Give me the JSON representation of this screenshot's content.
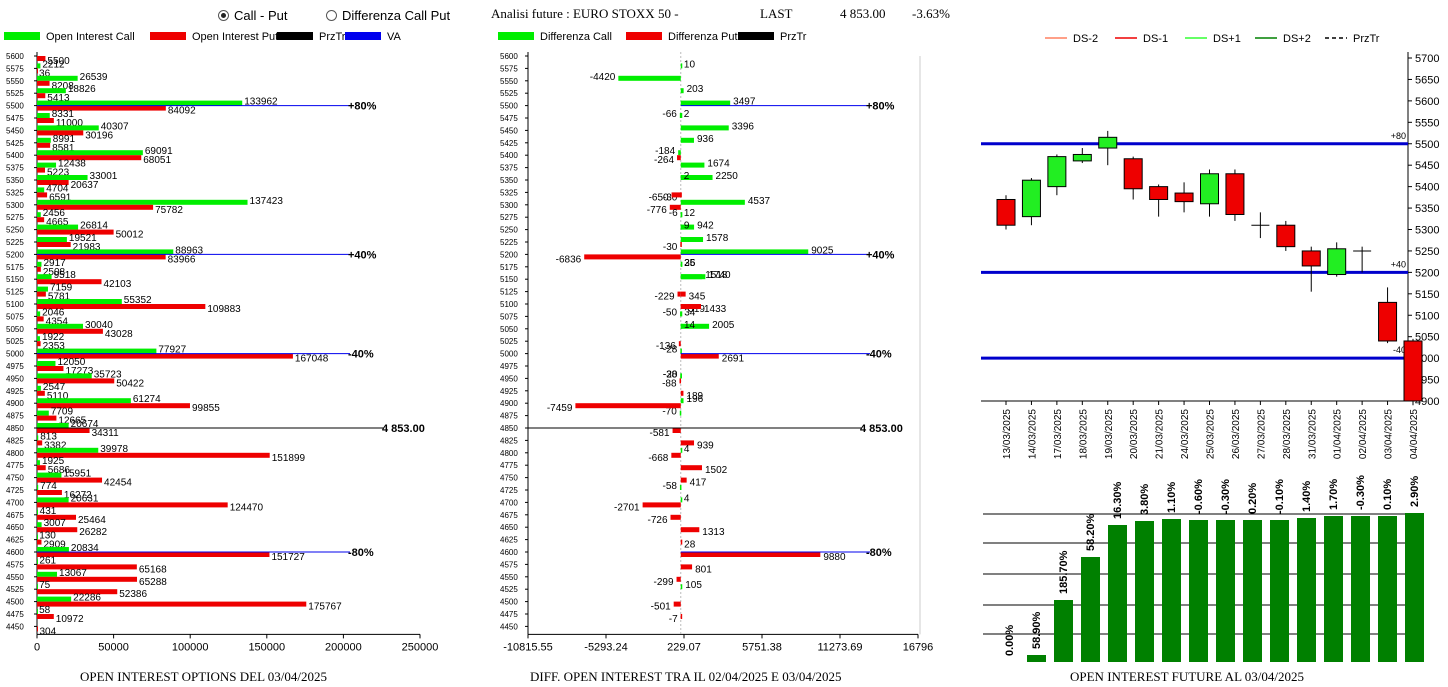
{
  "header": {
    "radio1": "Call - Put",
    "radio2": "Differenza Call Put",
    "radio1_selected": true,
    "analysis": "Analisi future : EURO STOXX 50 -",
    "last_label": "LAST",
    "last_value": "4 853.00",
    "change": "-3.63%"
  },
  "captions": {
    "left": "OPEN INTEREST OPTIONS DEL 03/04/2025",
    "mid": "DIFF. OPEN INTEREST TRA IL 02/04/2025 E 03/04/2025",
    "right": "OPEN INTEREST FUTURE AL 03/04/2025"
  },
  "colors": {
    "call": "#00ee00",
    "put": "#ee0000",
    "va": "#0000ee",
    "dark_green": "#008000"
  },
  "chart_data": [
    {
      "type": "bar",
      "orientation": "horizontal",
      "legend": [
        "Open Interest Call",
        "Open Interest Put",
        "PrzTr",
        "VA"
      ],
      "strikes": [
        5600,
        5575,
        5550,
        5525,
        5500,
        5475,
        5450,
        5425,
        5400,
        5375,
        5350,
        5325,
        5300,
        5275,
        5250,
        5225,
        5200,
        5175,
        5150,
        5125,
        5100,
        5075,
        5050,
        5025,
        5000,
        4975,
        4950,
        4925,
        4900,
        4875,
        4850,
        4825,
        4800,
        4775,
        4750,
        4725,
        4700,
        4675,
        4650,
        4625,
        4600,
        4575,
        4550,
        4525,
        4500,
        4475,
        4450
      ],
      "call": [
        null,
        2212,
        26539,
        18826,
        133962,
        8331,
        40307,
        8991,
        69091,
        12438,
        33001,
        4704,
        137423,
        2456,
        26814,
        19521,
        88963,
        2917,
        9518,
        7159,
        55352,
        2046,
        30040,
        1922,
        77927,
        12050,
        35723,
        2547,
        61274,
        7709,
        20674,
        813,
        39978,
        1925,
        15951,
        774,
        20631,
        431,
        3007,
        130,
        20834,
        261,
        13067,
        75,
        22286,
        58,
        null
      ],
      "put": [
        5500,
        36,
        8208,
        5413,
        84092,
        11000,
        30196,
        8581,
        68051,
        5223,
        20637,
        6591,
        75782,
        4665,
        50012,
        21983,
        83966,
        2508,
        42103,
        5781,
        109883,
        4354,
        43028,
        2353,
        167048,
        17273,
        50422,
        5110,
        99855,
        12665,
        34311,
        3382,
        151899,
        5686,
        42454,
        16272,
        124470,
        25464,
        26282,
        2909,
        151727,
        65168,
        65288,
        52386,
        175767,
        10972,
        304
      ],
      "markers": [
        {
          "label": "+80%",
          "strike": 5500
        },
        {
          "label": "+40%",
          "strike": 5200
        },
        {
          "label": "-40%",
          "strike": 5000
        },
        {
          "label": "-80%",
          "strike": 4600
        }
      ],
      "last_label": "4 853.00",
      "xticks": [
        "0",
        "50000",
        "100000",
        "150000",
        "200000",
        "250000"
      ],
      "xlim": [
        0,
        250000
      ]
    },
    {
      "type": "bar",
      "orientation": "horizontal",
      "legend": [
        "Differenza Call",
        "Differenza Put",
        "PrzTr"
      ],
      "strikes": [
        5600,
        5575,
        5550,
        5525,
        5500,
        5475,
        5450,
        5425,
        5400,
        5375,
        5350,
        5325,
        5300,
        5275,
        5250,
        5225,
        5200,
        5175,
        5150,
        5125,
        5100,
        5075,
        5050,
        5025,
        5000,
        4975,
        4950,
        4925,
        4900,
        4875,
        4850,
        4825,
        4800,
        4775,
        4750,
        4725,
        4700,
        4675,
        4650,
        4625,
        4600,
        4575,
        4550,
        4525,
        4500,
        4475,
        4450
      ],
      "rows": [
        {
          "v": 10,
          "t": "c"
        },
        {
          "v": -4420,
          "t": "c"
        },
        {
          "v": 203,
          "t": "c"
        },
        {
          "v": 3497,
          "t": "c"
        },
        {
          "v": -66,
          "t": "c"
        },
        {
          "v": 3396,
          "t": "c"
        },
        {
          "v": 936,
          "t": "c"
        },
        {
          "v": -184,
          "t": "c"
        },
        {
          "v": 1674,
          "t": "c"
        },
        {
          "v": 2250,
          "t": "c"
        },
        {
          "v": -30,
          "t": "p"
        },
        {
          "v": -776,
          "t": "p"
        },
        {
          "v": 942,
          "t": "c"
        },
        {
          "v": -30,
          "t": "p"
        },
        {
          "v": 25,
          "t": "c"
        },
        {
          "v": 1740,
          "t": "c"
        },
        {
          "v": 345,
          "t": "p"
        },
        {
          "v": -229,
          "t": "p"
        },
        {
          "v": 34,
          "t": "c"
        },
        {
          "v": 2005,
          "t": "c"
        },
        {
          "v": -136,
          "t": "p"
        },
        {
          "v": -28,
          "t": "c"
        },
        {
          "v": -38,
          "t": "c"
        },
        {
          "v": -88,
          "t": "p"
        },
        {
          "v": -70,
          "t": "c"
        },
        {
          "v": -581,
          "t": "p"
        },
        {
          "v": -668,
          "t": "p"
        },
        {
          "v": 1502,
          "t": "p"
        },
        {
          "v": -58,
          "t": "c"
        },
        {
          "v": -2701,
          "t": "p"
        },
        {
          "v": -726,
          "t": "p"
        },
        {
          "v": 28,
          "t": "p"
        },
        {
          "v": 801,
          "t": "p"
        },
        {
          "v": -299,
          "t": "p"
        },
        {
          "v": -501,
          "t": "p"
        },
        {
          "v": -7,
          "t": "p"
        }
      ],
      "row_strikes": [
        5575,
        5550,
        5525,
        5500,
        5475,
        5450,
        5425,
        5400,
        5375,
        5350,
        5325,
        5300,
        5250,
        5225,
        5175,
        5150,
        5125,
        5125,
        5075,
        5050,
        5025,
        5000,
        4950,
        4950,
        4875,
        4850,
        4800,
        4775,
        4725,
        4700,
        4675,
        4625,
        4575,
        4550,
        4500,
        4475
      ],
      "extra": [
        {
          "v": -264,
          "t": "p",
          "s": 5400
        },
        {
          "v": 2,
          "t": "c",
          "s": 5475
        },
        {
          "v": 2,
          "t": "c",
          "s": 5350
        },
        {
          "v": -650,
          "t": "p",
          "s": 5325
        },
        {
          "v": 4537,
          "t": "c",
          "s": 5300
        },
        {
          "v": -6,
          "t": "c",
          "s": 5275
        },
        {
          "v": 12,
          "t": "c",
          "s": 5275
        },
        {
          "v": 9,
          "t": "c",
          "s": 5250
        },
        {
          "v": 1578,
          "t": "c",
          "s": 5225
        },
        {
          "v": 9025,
          "t": "c",
          "s": 5200
        },
        {
          "v": -6836,
          "t": "p",
          "s": 5200
        },
        {
          "v": 36,
          "t": "c",
          "s": 5175
        },
        {
          "v": 1518,
          "t": "c",
          "s": 5150
        },
        {
          "v": 319,
          "t": "p",
          "s": 5100
        },
        {
          "v": 1433,
          "t": "p",
          "s": 5100
        },
        {
          "v": -50,
          "t": "c",
          "s": 5075
        },
        {
          "v": 14,
          "t": "c",
          "s": 5050
        },
        {
          "v": 2691,
          "t": "p",
          "s": 5000
        },
        {
          "v": 189,
          "t": "p",
          "s": 4925
        },
        {
          "v": 196,
          "t": "c",
          "s": 4900
        },
        {
          "v": -7459,
          "t": "p",
          "s": 4900
        },
        {
          "v": 939,
          "t": "p",
          "s": 4825
        },
        {
          "v": 4,
          "t": "c",
          "s": 4800
        },
        {
          "v": 417,
          "t": "p",
          "s": 4750
        },
        {
          "v": 4,
          "t": "c",
          "s": 4700
        },
        {
          "v": 1313,
          "t": "p",
          "s": 4650
        },
        {
          "v": 9880,
          "t": "p",
          "s": 4600
        },
        {
          "v": 105,
          "t": "c",
          "s": 4525
        },
        {
          "v": -20,
          "t": "c",
          "s": 4950
        }
      ],
      "markers": [
        {
          "label": "+80%",
          "strike": 5500
        },
        {
          "label": "+40%",
          "strike": 5200
        },
        {
          "label": "-40%",
          "strike": 5000
        },
        {
          "label": "-80%",
          "strike": 4600
        }
      ],
      "last_label": "4 853.00",
      "xticks": [
        "-10815.55",
        "-5293.24",
        "229.07",
        "5751.38",
        "11273.69",
        "16796"
      ],
      "xlim": [
        -10815.55,
        16796
      ]
    },
    {
      "type": "candlestick",
      "legend": [
        "DS-2",
        "DS-1",
        "DS+1",
        "DS+2",
        "PrzTr"
      ],
      "dates": [
        "13/03/2025",
        "14/03/2025",
        "17/03/2025",
        "18/03/2025",
        "19/03/2025",
        "20/03/2025",
        "21/03/2025",
        "24/03/2025",
        "25/03/2025",
        "26/03/2025",
        "27/03/2025",
        "28/03/2025",
        "31/03/2025",
        "01/04/2025",
        "02/04/2025",
        "03/04/2025",
        "04/04/2025"
      ],
      "candles": [
        {
          "o": 5370,
          "c": 5310,
          "h": 5380,
          "l": 5300
        },
        {
          "o": 5330,
          "c": 5415,
          "h": 5420,
          "l": 5310
        },
        {
          "o": 5400,
          "c": 5470,
          "h": 5475,
          "l": 5380
        },
        {
          "o": 5460,
          "c": 5475,
          "h": 5490,
          "l": 5455
        },
        {
          "o": 5490,
          "c": 5515,
          "h": 5530,
          "l": 5450
        },
        {
          "o": 5465,
          "c": 5395,
          "h": 5470,
          "l": 5370
        },
        {
          "o": 5400,
          "c": 5370,
          "h": 5405,
          "l": 5330
        },
        {
          "o": 5385,
          "c": 5365,
          "h": 5410,
          "l": 5340
        },
        {
          "o": 5360,
          "c": 5430,
          "h": 5440,
          "l": 5330
        },
        {
          "o": 5430,
          "c": 5335,
          "h": 5440,
          "l": 5320
        },
        {
          "o": 5310,
          "c": 5310,
          "h": 5340,
          "l": 5280
        },
        {
          "o": 5310,
          "c": 5260,
          "h": 5320,
          "l": 5250
        },
        {
          "o": 5250,
          "c": 5215,
          "h": 5260,
          "l": 5155
        },
        {
          "o": 5195,
          "c": 5255,
          "h": 5270,
          "l": 5190
        },
        {
          "o": 5250,
          "c": 5250,
          "h": 5260,
          "l": 5200
        },
        {
          "o": 5130,
          "c": 5040,
          "h": 5165,
          "l": 5035
        },
        {
          "o": 5040,
          "c": 4900,
          "h": 5045,
          "l": 4890
        }
      ],
      "hlines": [
        {
          "label": "+80",
          "value": 5500
        },
        {
          "label": "+40",
          "value": 5200
        },
        {
          "label": "-40",
          "value": 5000
        }
      ],
      "yticks": [
        "5700",
        "5650",
        "5600",
        "5550",
        "5500",
        "5450",
        "5400",
        "5350",
        "5300",
        "5250",
        "5200",
        "5150",
        "5100",
        "5050",
        "5000",
        "4950",
        "4900"
      ],
      "ylim": [
        4900,
        5700
      ]
    },
    {
      "type": "bar",
      "labels": [
        "0.00%",
        "58.90%",
        "185.70%",
        "58.20%",
        "16.30%",
        "3.80%",
        "1.10%",
        "-0.60%",
        "-0.30%",
        "0.20%",
        "-0.10%",
        "1.40%",
        "1.70%",
        "-0.30%",
        "0.10%",
        "2.90%"
      ],
      "values": [
        0,
        58.9,
        185.7,
        58.2,
        16.3,
        3.8,
        1.1,
        -0.6,
        -0.3,
        0.2,
        -0.1,
        1.4,
        1.7,
        -0.3,
        0.1,
        2.9
      ],
      "heights": [
        0,
        7,
        62,
        105,
        137,
        141,
        143,
        142,
        142,
        142,
        142,
        144,
        146,
        146,
        146,
        149
      ]
    }
  ]
}
